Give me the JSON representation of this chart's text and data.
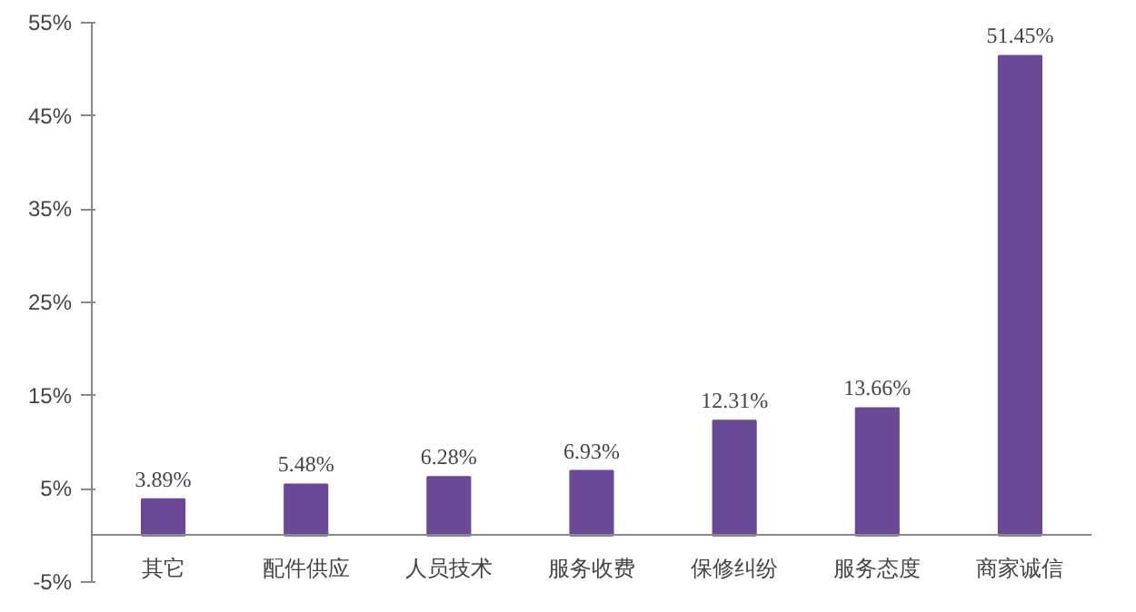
{
  "chart_data": {
    "type": "bar",
    "categories": [
      "其它",
      "配件供应",
      "人员技术",
      "服务收费",
      "保修纠纷",
      "服务态度",
      "商家诚信"
    ],
    "values": [
      3.89,
      5.48,
      6.28,
      6.93,
      12.31,
      13.66,
      51.45
    ],
    "value_labels": [
      "3.89%",
      "5.48%",
      "6.28%",
      "6.93%",
      "12.31%",
      "13.66%",
      "51.45%"
    ],
    "color": "#6a4a96",
    "ylim": [
      -5,
      55
    ],
    "yticks": [
      {
        "value": -5,
        "label": "-5%"
      },
      {
        "value": 5,
        "label": "5%"
      },
      {
        "value": 15,
        "label": "15%"
      },
      {
        "value": 25,
        "label": "25%"
      },
      {
        "value": 35,
        "label": "35%"
      },
      {
        "value": 45,
        "label": "45%"
      },
      {
        "value": 55,
        "label": "55%"
      }
    ],
    "grid": false
  }
}
